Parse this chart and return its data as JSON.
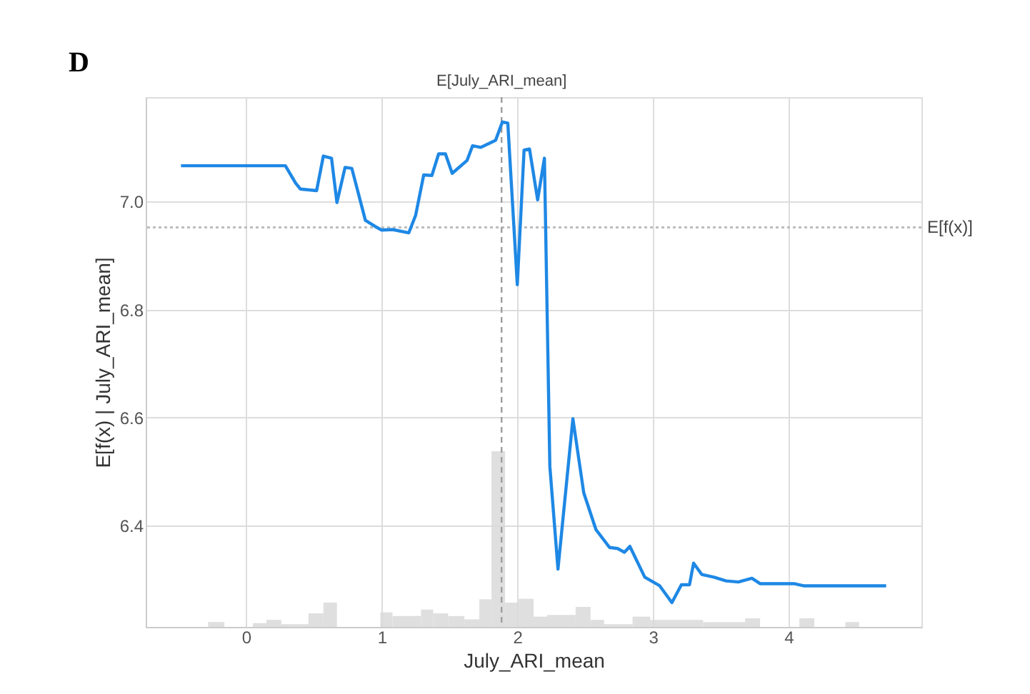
{
  "chart_data": {
    "type": "line",
    "xlabel": "July_ARI_mean",
    "ylabel": "E[f(x) | July_ARI_mean]",
    "annotations": [
      "D"
    ],
    "xlim": [
      -0.74,
      4.98
    ],
    "ylim": [
      6.213,
      7.193
    ],
    "xticks": [
      0,
      1,
      2,
      3,
      4
    ],
    "yticks": [
      {
        "value": 6.4,
        "label": "6.4"
      },
      {
        "value": 6.6,
        "label": "6.6"
      },
      {
        "value": 6.8,
        "label": "6.8"
      },
      {
        "value": 7.0,
        "label": "7.0"
      }
    ],
    "grid": true,
    "ref_lines": [
      {
        "axis": "y",
        "value": 6.952,
        "label": "E[f(x)]",
        "color": "#bdbdbd",
        "line_style": "dotted"
      },
      {
        "axis": "x",
        "value": 1.884,
        "label": "E[July_ARI_mean]",
        "color": "#9e9e9e",
        "line_style": "dashed"
      }
    ],
    "series": [
      {
        "type": "histogram",
        "color": "#d9d9d9",
        "bins": [
          -0.28,
          -0.16,
          0.05,
          0.15,
          0.26,
          0.46,
          0.57,
          0.67,
          0.99,
          1.08,
          1.29,
          1.38,
          1.49,
          1.61,
          1.72,
          1.81,
          1.91,
          2.01,
          2.12,
          2.22,
          2.43,
          2.54,
          2.64,
          2.85,
          2.98,
          3.37,
          3.68,
          3.79,
          4.08,
          4.19,
          4.42,
          4.52
        ],
        "values": [
          6.222,
          null,
          6.22,
          6.226,
          6.218,
          6.238,
          6.258,
          null,
          6.24,
          6.233,
          6.245,
          6.238,
          6.233,
          6.227,
          6.264,
          6.538,
          6.258,
          6.265,
          6.232,
          6.235,
          6.25,
          6.226,
          6.218,
          6.232,
          6.226,
          6.222,
          6.229,
          null,
          6.229,
          null,
          6.222
        ]
      },
      {
        "type": "line",
        "color": "#1e88e5",
        "x": [
          -0.48,
          0.29,
          0.365,
          0.4,
          0.52,
          0.57,
          0.63,
          0.67,
          0.73,
          0.78,
          0.88,
          0.95,
          1.0,
          1.08,
          1.2,
          1.25,
          1.31,
          1.37,
          1.42,
          1.47,
          1.52,
          1.63,
          1.67,
          1.73,
          1.84,
          1.89,
          1.93,
          2.0,
          2.05,
          2.09,
          2.15,
          2.2,
          2.24,
          2.3,
          2.41,
          2.49,
          2.58,
          2.68,
          2.74,
          2.79,
          2.83,
          2.94,
          3.05,
          3.14,
          3.21,
          3.27,
          3.3,
          3.36,
          3.45,
          3.54,
          3.63,
          3.73,
          3.79,
          4.04,
          4.11,
          4.72
        ],
        "values": [
          7.066,
          7.066,
          7.034,
          7.023,
          7.02,
          7.084,
          7.08,
          6.998,
          7.063,
          7.061,
          6.965,
          6.954,
          6.947,
          6.948,
          6.942,
          6.974,
          7.049,
          7.048,
          7.088,
          7.088,
          7.052,
          7.076,
          7.103,
          7.1,
          7.113,
          7.147,
          7.145,
          6.846,
          7.095,
          7.097,
          7.003,
          7.08,
          6.51,
          6.32,
          6.598,
          6.461,
          6.393,
          6.36,
          6.358,
          6.351,
          6.362,
          6.305,
          6.289,
          6.258,
          6.291,
          6.291,
          6.331,
          6.31,
          6.305,
          6.298,
          6.296,
          6.303,
          6.293,
          6.293,
          6.289,
          6.289
        ]
      }
    ]
  }
}
